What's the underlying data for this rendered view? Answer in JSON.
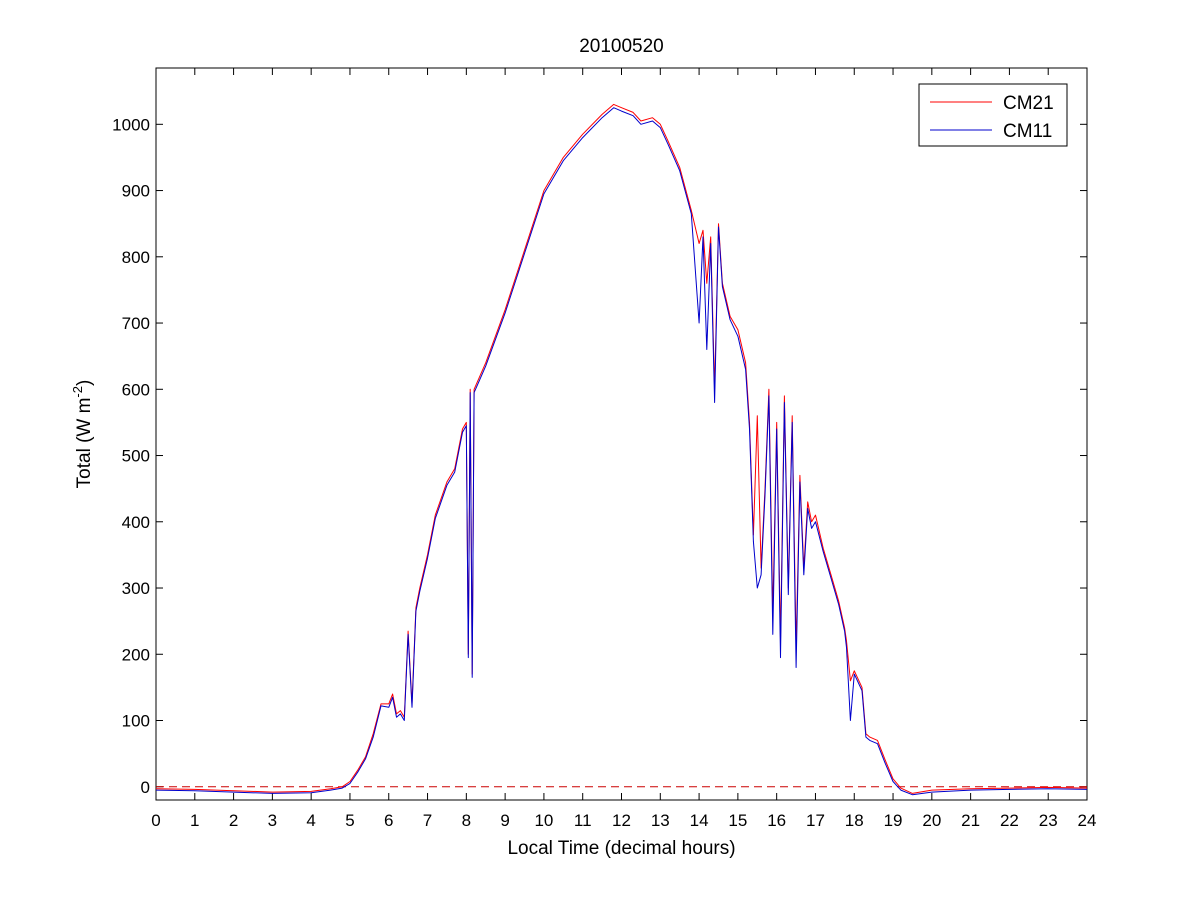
{
  "chart_data": {
    "type": "line",
    "title": "20100520",
    "xlabel": "Local Time (decimal hours)",
    "ylabel": {
      "base": "Total (W m",
      "exponent": "-2",
      "suffix": ")"
    },
    "xlim": [
      0,
      24
    ],
    "ylim": [
      -20,
      1085
    ],
    "xticks": [
      0,
      1,
      2,
      3,
      4,
      5,
      6,
      7,
      8,
      9,
      10,
      11,
      12,
      13,
      14,
      15,
      16,
      17,
      18,
      19,
      20,
      21,
      22,
      23,
      24
    ],
    "yticks": [
      0,
      100,
      200,
      300,
      400,
      500,
      600,
      700,
      800,
      900,
      1000
    ],
    "grid": false,
    "legend_position": "top-right",
    "reference_line": {
      "y": 0,
      "style": "dashed",
      "color": "#cc0000"
    },
    "series": [
      {
        "name": "CM21",
        "color": "#ff0000",
        "x": [
          0,
          1,
          2,
          3,
          4,
          4.5,
          4.8,
          5.0,
          5.2,
          5.4,
          5.6,
          5.8,
          6.0,
          6.1,
          6.2,
          6.3,
          6.4,
          6.5,
          6.6,
          6.7,
          6.8,
          7.0,
          7.2,
          7.5,
          7.7,
          7.9,
          8.0,
          8.05,
          8.1,
          8.15,
          8.2,
          8.5,
          9,
          9.5,
          10,
          10.5,
          11,
          11.5,
          11.8,
          12,
          12.3,
          12.5,
          12.8,
          13,
          13.2,
          13.5,
          13.8,
          14.0,
          14.1,
          14.2,
          14.3,
          14.4,
          14.5,
          14.6,
          14.8,
          15.0,
          15.2,
          15.3,
          15.4,
          15.5,
          15.6,
          15.7,
          15.8,
          15.9,
          16.0,
          16.1,
          16.2,
          16.3,
          16.4,
          16.5,
          16.6,
          16.7,
          16.8,
          16.9,
          17.0,
          17.2,
          17.4,
          17.6,
          17.75,
          17.8,
          17.9,
          18.0,
          18.2,
          18.3,
          18.4,
          18.6,
          18.8,
          19.0,
          19.2,
          19.5,
          20,
          21,
          22,
          23,
          24
        ],
        "values": [
          -3,
          -4,
          -6,
          -8,
          -7,
          -3,
          0,
          8,
          25,
          45,
          80,
          125,
          125,
          140,
          110,
          115,
          105,
          235,
          125,
          270,
          300,
          350,
          410,
          460,
          480,
          540,
          550,
          200,
          600,
          170,
          600,
          640,
          720,
          810,
          900,
          950,
          985,
          1015,
          1030,
          1025,
          1018,
          1005,
          1010,
          1000,
          975,
          935,
          870,
          820,
          840,
          760,
          830,
          600,
          850,
          760,
          710,
          690,
          640,
          550,
          380,
          560,
          330,
          450,
          600,
          260,
          550,
          220,
          590,
          300,
          560,
          210,
          470,
          330,
          430,
          400,
          410,
          360,
          320,
          280,
          240,
          220,
          160,
          175,
          150,
          80,
          75,
          70,
          40,
          12,
          -2,
          -10,
          -5,
          -3,
          -2,
          -1,
          -2
        ]
      },
      {
        "name": "CM11",
        "color": "#0000cc",
        "x": [
          0,
          1,
          2,
          3,
          4,
          4.5,
          4.8,
          5.0,
          5.2,
          5.4,
          5.6,
          5.8,
          6.0,
          6.1,
          6.2,
          6.3,
          6.4,
          6.5,
          6.6,
          6.7,
          6.8,
          7.0,
          7.2,
          7.5,
          7.7,
          7.9,
          8.0,
          8.05,
          8.1,
          8.15,
          8.2,
          8.5,
          9,
          9.5,
          10,
          10.5,
          11,
          11.5,
          11.8,
          12,
          12.3,
          12.5,
          12.8,
          13,
          13.2,
          13.5,
          13.8,
          14.0,
          14.1,
          14.2,
          14.3,
          14.4,
          14.5,
          14.6,
          14.8,
          15.0,
          15.2,
          15.3,
          15.4,
          15.5,
          15.6,
          15.7,
          15.8,
          15.9,
          16.0,
          16.1,
          16.2,
          16.3,
          16.4,
          16.5,
          16.6,
          16.7,
          16.8,
          16.9,
          17.0,
          17.2,
          17.4,
          17.6,
          17.75,
          17.8,
          17.9,
          18.0,
          18.2,
          18.3,
          18.4,
          18.6,
          18.8,
          19.0,
          19.2,
          19.5,
          20,
          21,
          22,
          23,
          24
        ],
        "values": [
          -5,
          -6,
          -8,
          -10,
          -9,
          -5,
          -2,
          5,
          22,
          42,
          75,
          122,
          120,
          135,
          105,
          110,
          100,
          230,
          120,
          265,
          295,
          345,
          405,
          455,
          475,
          535,
          545,
          195,
          595,
          165,
          595,
          635,
          715,
          805,
          895,
          945,
          980,
          1010,
          1025,
          1020,
          1013,
          1000,
          1005,
          995,
          970,
          930,
          865,
          700,
          830,
          660,
          820,
          580,
          845,
          755,
          705,
          680,
          630,
          540,
          370,
          300,
          320,
          440,
          590,
          230,
          540,
          195,
          580,
          290,
          550,
          180,
          460,
          320,
          420,
          390,
          400,
          355,
          315,
          275,
          235,
          210,
          100,
          170,
          145,
          75,
          70,
          65,
          35,
          8,
          -5,
          -12,
          -8,
          -5,
          -4,
          -3,
          -4
        ]
      }
    ]
  }
}
